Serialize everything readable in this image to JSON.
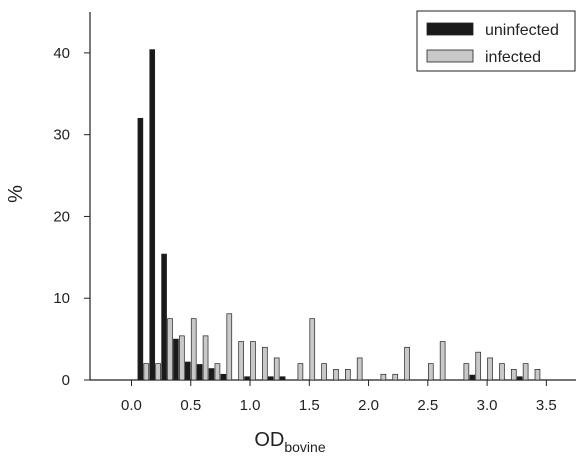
{
  "chart_data": {
    "type": "bar",
    "xlabel": "OD",
    "xlabel_subscript": "bovine",
    "ylabel": "%",
    "xlim": [
      -0.35,
      3.75
    ],
    "ylim": [
      0,
      45
    ],
    "xticks": [
      "0.0",
      "0.5",
      "1.0",
      "1.5",
      "2.0",
      "2.5",
      "3.0",
      "3.5"
    ],
    "yticks": [
      "0",
      "10",
      "20",
      "30",
      "40"
    ],
    "bin_width": 0.1,
    "grid": false,
    "legend_position": "top-right",
    "series": [
      {
        "name": "uninfected",
        "color": "#1a1a1a",
        "x": [
          0.1,
          0.2,
          0.3,
          0.4,
          0.5,
          0.6,
          0.7,
          0.8,
          0.9,
          1.0,
          1.1,
          1.2,
          1.3,
          1.4,
          1.5,
          1.6,
          1.7,
          1.8,
          1.9,
          2.0,
          2.1,
          2.2,
          2.3,
          2.4,
          2.5,
          2.6,
          2.7,
          2.8,
          2.9,
          3.0,
          3.1,
          3.2,
          3.3,
          3.4
        ],
        "values": [
          32,
          40.4,
          15.4,
          5,
          2.2,
          1.9,
          1.4,
          0.7,
          0,
          0.4,
          0,
          0.4,
          0.4,
          0,
          0,
          0,
          0,
          0,
          0,
          0,
          0,
          0,
          0,
          0,
          0,
          0,
          0,
          0,
          0.6,
          0,
          0,
          0,
          0.4,
          0
        ]
      },
      {
        "name": "infected",
        "color": "#c8c8c8",
        "x": [
          0.1,
          0.2,
          0.3,
          0.4,
          0.5,
          0.6,
          0.7,
          0.8,
          0.9,
          1.0,
          1.1,
          1.2,
          1.3,
          1.4,
          1.5,
          1.6,
          1.7,
          1.8,
          1.9,
          2.0,
          2.1,
          2.2,
          2.3,
          2.4,
          2.5,
          2.6,
          2.7,
          2.8,
          2.9,
          3.0,
          3.1,
          3.2,
          3.3,
          3.4
        ],
        "values": [
          2,
          2,
          7.5,
          5.4,
          7.5,
          5.4,
          2,
          8.1,
          4.7,
          4.7,
          4,
          2.7,
          0,
          2,
          7.5,
          2,
          1.3,
          1.3,
          2.7,
          0,
          0.7,
          0.7,
          4,
          0,
          2,
          4.7,
          0,
          2,
          3.4,
          2.7,
          2,
          1.3,
          2,
          1.3
        ]
      }
    ]
  }
}
